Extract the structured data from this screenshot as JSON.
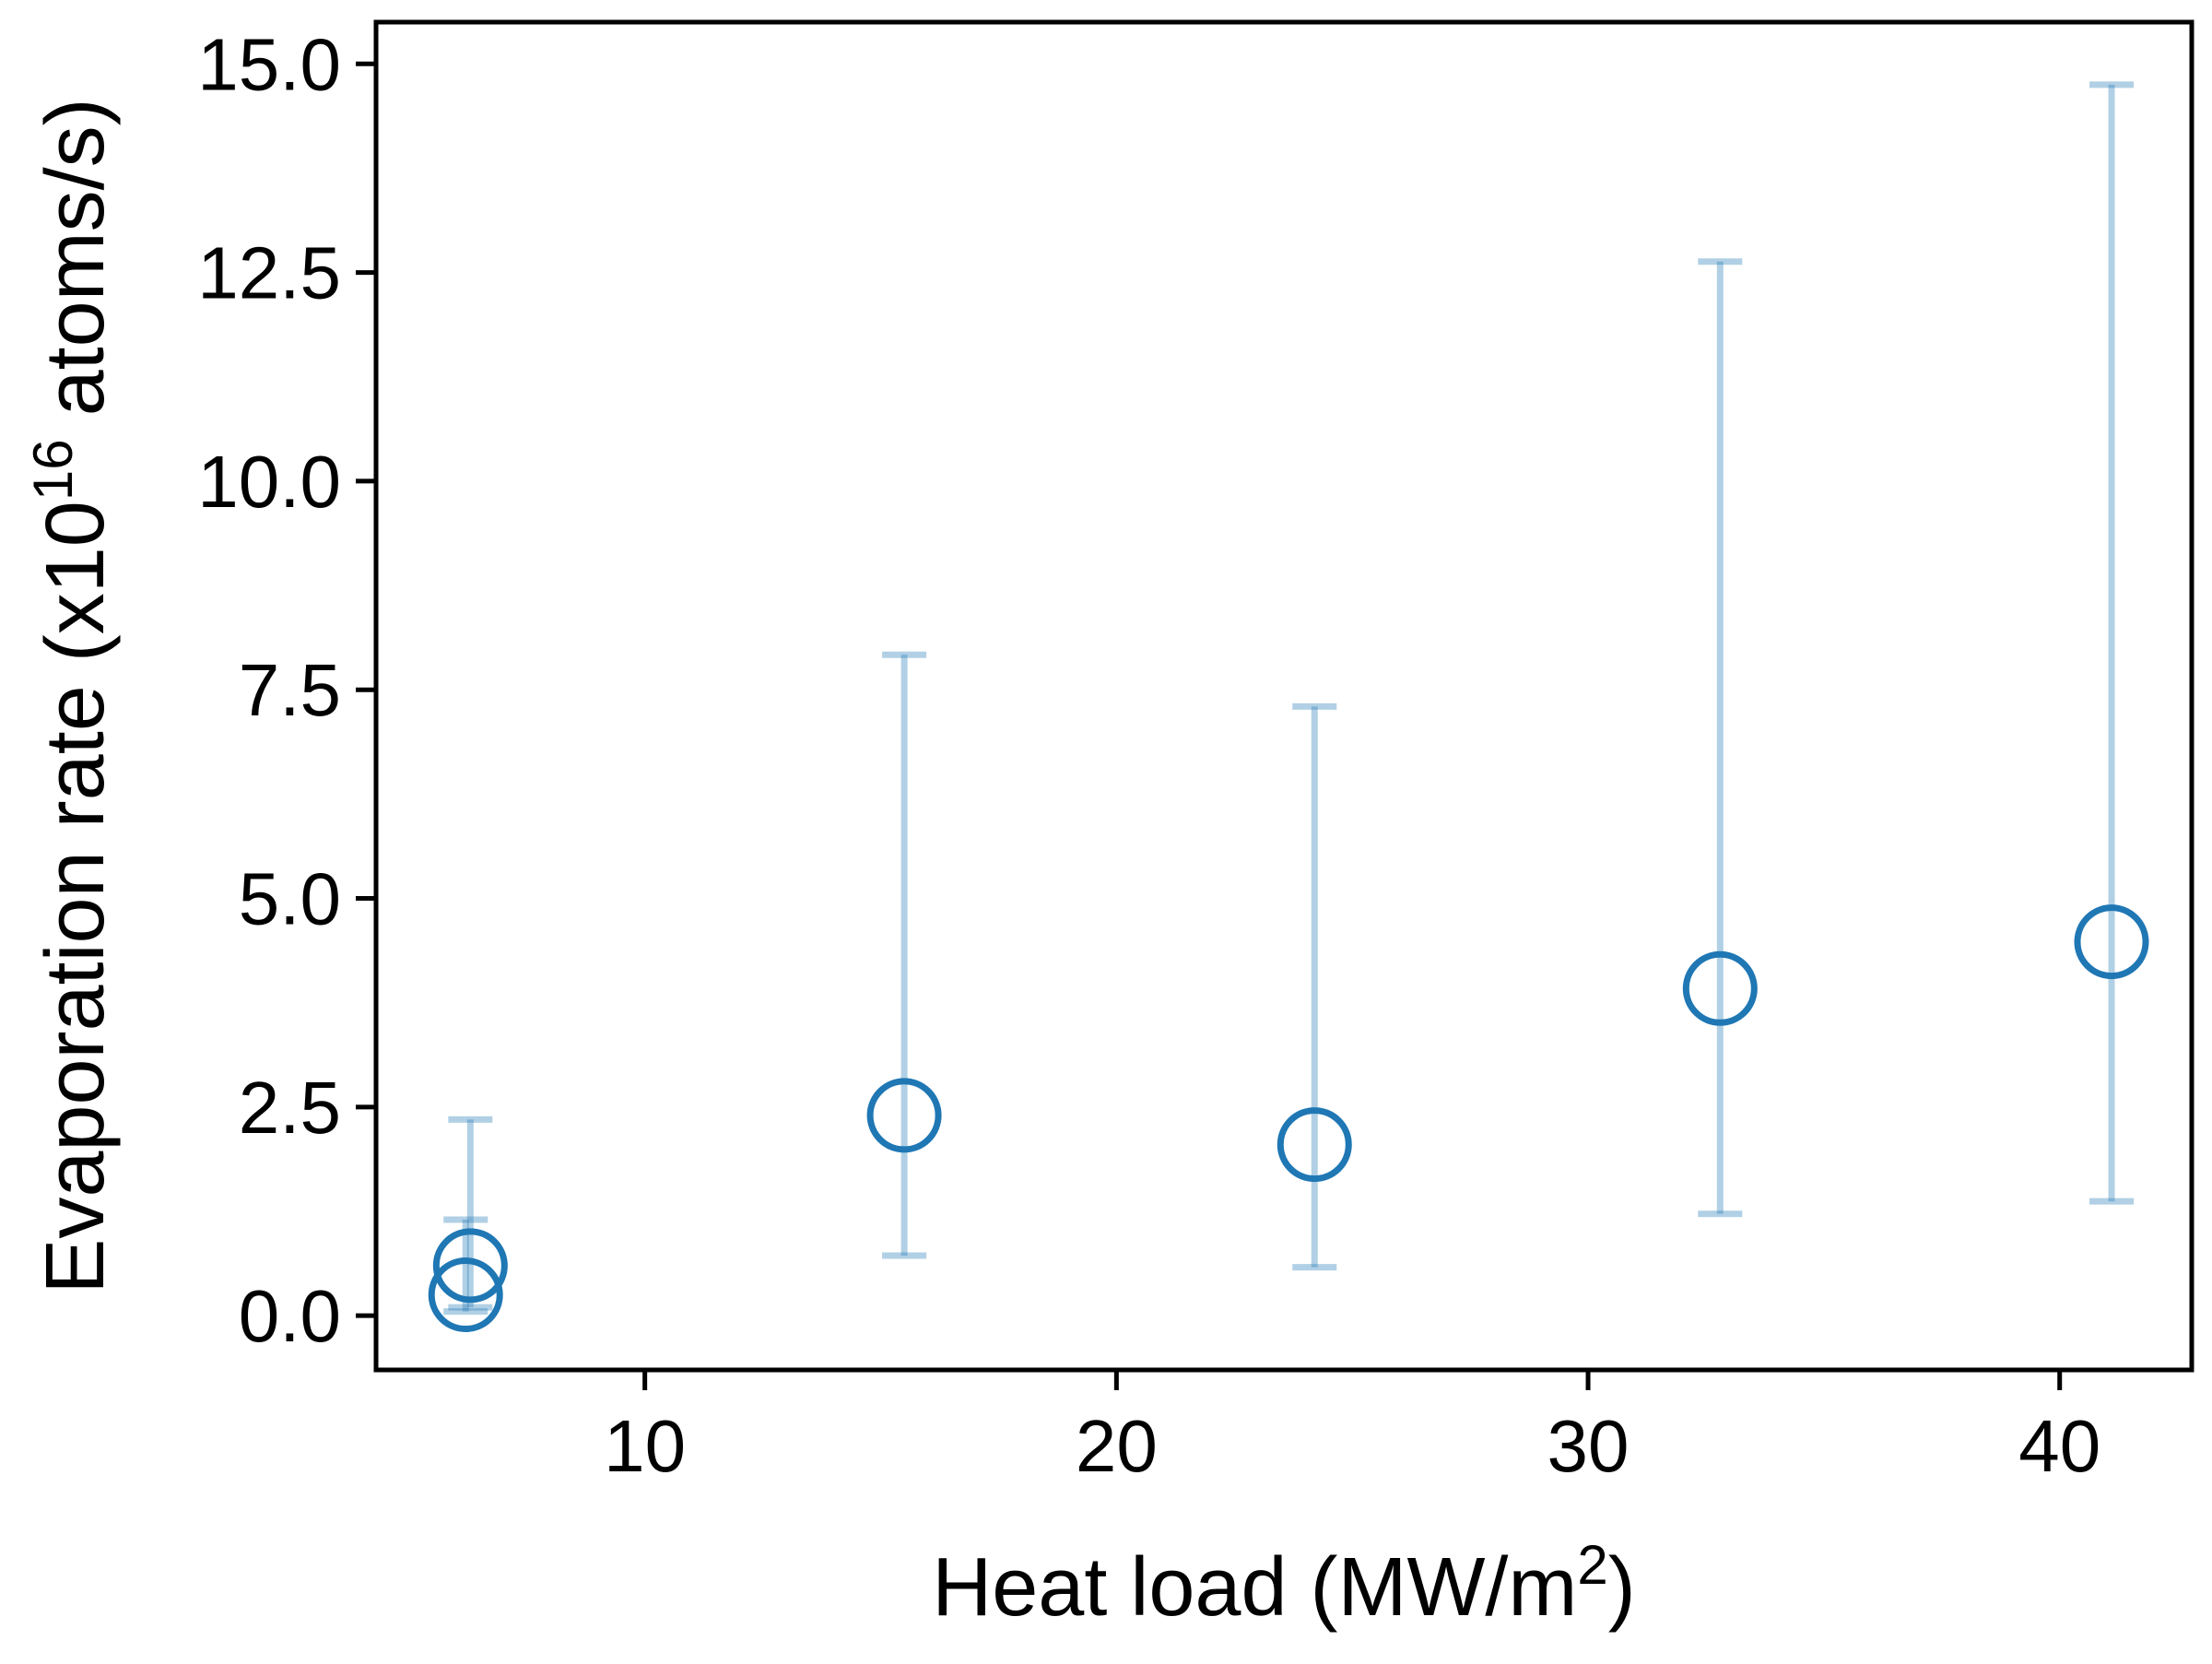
{
  "chart_data": {
    "type": "scatter",
    "title": "",
    "xlabel": "Heat load (MW/m",
    "xlabel_sup": "2",
    "xlabel_tail": ")",
    "ylabel": "Evaporation rate (x10",
    "ylabel_sup": "16",
    "ylabel_tail": " atoms/s)",
    "xlim": [
      4.3,
      42.8
    ],
    "ylim": [
      -0.65,
      15.5
    ],
    "xticks": [
      10,
      20,
      30,
      40
    ],
    "yticks": [
      0.0,
      2.5,
      5.0,
      7.5,
      10.0,
      12.5,
      15.0
    ],
    "xtick_labels": [
      "10",
      "20",
      "30",
      "40"
    ],
    "ytick_labels": [
      "0.0",
      "2.5",
      "5.0",
      "7.5",
      "10.0",
      "12.5",
      "15.0"
    ],
    "grid": false,
    "marker_color": "#1f77b4",
    "errorbar_color": "#1f77b4",
    "series": [
      {
        "marker": "open-circle",
        "points": [
          {
            "x": 6.2,
            "y": 0.25,
            "y_low": 0.05,
            "y_high": 1.15
          },
          {
            "x": 6.3,
            "y": 0.6,
            "y_low": 0.1,
            "y_high": 2.35
          },
          {
            "x": 15.5,
            "y": 2.4,
            "y_low": 0.72,
            "y_high": 7.92
          },
          {
            "x": 24.2,
            "y": 2.05,
            "y_low": 0.58,
            "y_high": 7.3
          },
          {
            "x": 32.8,
            "y": 3.92,
            "y_low": 1.22,
            "y_high": 12.63
          },
          {
            "x": 41.1,
            "y": 4.48,
            "y_low": 1.37,
            "y_high": 14.75
          }
        ]
      }
    ]
  }
}
